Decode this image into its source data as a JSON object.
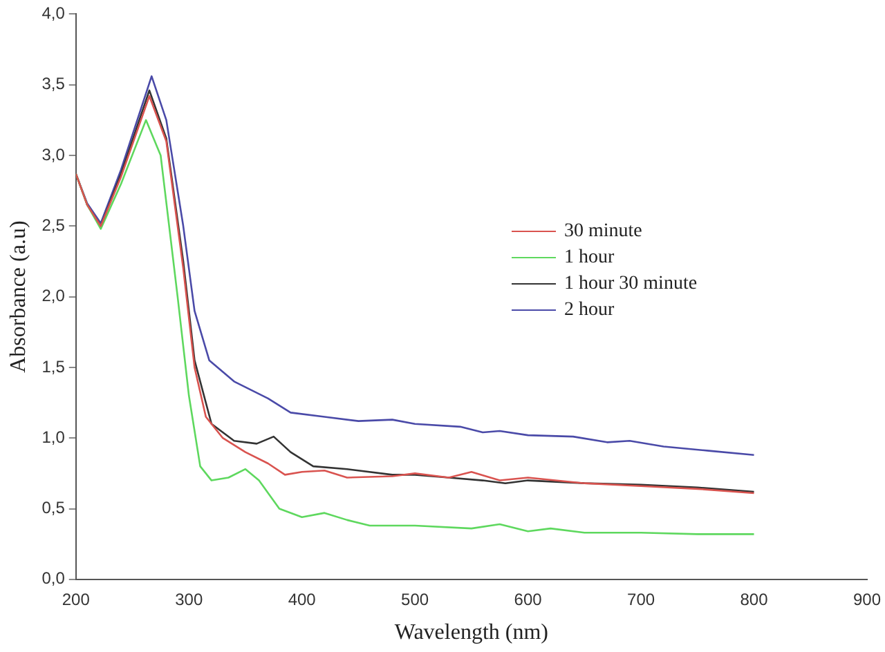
{
  "chart_data": {
    "type": "line",
    "xlabel": "Wavelength (nm)",
    "ylabel": "Absorbance (a.u)",
    "xlim": [
      200,
      900
    ],
    "xticks": [
      200,
      300,
      400,
      500,
      600,
      700,
      800,
      900
    ],
    "ylim": [
      0,
      4
    ],
    "yticks": [
      {
        "value": 0,
        "label": "0,0"
      },
      {
        "value": 0.5,
        "label": "0,5"
      },
      {
        "value": 1,
        "label": "1,0"
      },
      {
        "value": 1.5,
        "label": "1,5"
      },
      {
        "value": 2,
        "label": "2,0"
      },
      {
        "value": 2.5,
        "label": "2,5"
      },
      {
        "value": 3,
        "label": "3,0"
      },
      {
        "value": 3.5,
        "label": "3,5"
      },
      {
        "value": 4,
        "label": "4,0"
      }
    ],
    "grid": false,
    "legend": "right",
    "marker": "none",
    "line_style": "solid",
    "series": [
      {
        "name": "30 minute",
        "color": "#d9534f",
        "x": [
          200,
          210,
          222,
          240,
          265,
          280,
          295,
          305,
          315,
          330,
          350,
          370,
          385,
          400,
          420,
          440,
          480,
          500,
          530,
          550,
          575,
          600,
          650,
          700,
          750,
          800
        ],
        "values": [
          2.87,
          2.65,
          2.5,
          2.85,
          3.42,
          3.1,
          2.2,
          1.5,
          1.15,
          1.0,
          0.9,
          0.82,
          0.74,
          0.76,
          0.77,
          0.72,
          0.73,
          0.75,
          0.72,
          0.76,
          0.7,
          0.72,
          0.68,
          0.66,
          0.64,
          0.61
        ]
      },
      {
        "name": "1 hour",
        "color": "#5ed85e",
        "x": [
          200,
          210,
          222,
          240,
          262,
          275,
          290,
          300,
          310,
          320,
          335,
          350,
          362,
          380,
          400,
          420,
          440,
          460,
          500,
          550,
          575,
          600,
          620,
          650,
          700,
          750,
          800
        ],
        "values": [
          2.87,
          2.65,
          2.48,
          2.8,
          3.25,
          3.0,
          2.0,
          1.3,
          0.8,
          0.7,
          0.72,
          0.78,
          0.7,
          0.5,
          0.44,
          0.47,
          0.42,
          0.38,
          0.38,
          0.36,
          0.39,
          0.34,
          0.36,
          0.33,
          0.33,
          0.32,
          0.32
        ]
      },
      {
        "name": "1 hour 30 minute",
        "color": "#333333",
        "x": [
          200,
          210,
          222,
          240,
          265,
          280,
          295,
          305,
          320,
          340,
          360,
          375,
          390,
          410,
          440,
          480,
          500,
          530,
          560,
          580,
          600,
          650,
          700,
          750,
          800
        ],
        "values": [
          2.87,
          2.65,
          2.5,
          2.87,
          3.46,
          3.12,
          2.25,
          1.55,
          1.1,
          0.98,
          0.96,
          1.01,
          0.9,
          0.8,
          0.78,
          0.74,
          0.74,
          0.72,
          0.7,
          0.68,
          0.7,
          0.68,
          0.67,
          0.65,
          0.62
        ]
      },
      {
        "name": "2 hour",
        "color": "#4a4aa8",
        "x": [
          200,
          210,
          222,
          240,
          267,
          280,
          295,
          305,
          318,
          340,
          370,
          390,
          420,
          450,
          480,
          500,
          540,
          560,
          575,
          600,
          640,
          670,
          690,
          720,
          760,
          800
        ],
        "values": [
          2.87,
          2.66,
          2.52,
          2.9,
          3.56,
          3.25,
          2.5,
          1.9,
          1.55,
          1.4,
          1.28,
          1.18,
          1.15,
          1.12,
          1.13,
          1.1,
          1.08,
          1.04,
          1.05,
          1.02,
          1.01,
          0.97,
          0.98,
          0.94,
          0.91,
          0.88
        ]
      }
    ]
  }
}
